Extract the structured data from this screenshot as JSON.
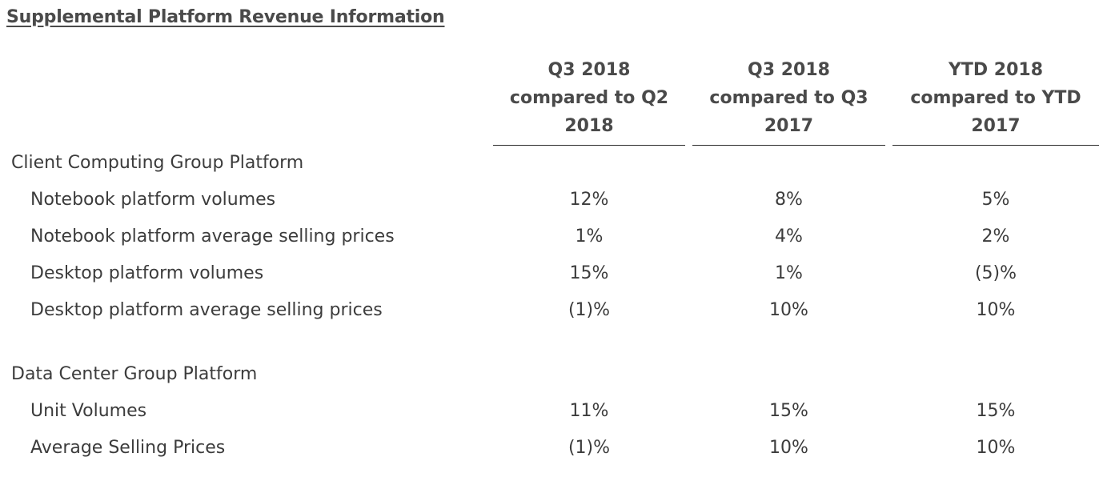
{
  "title": "Supplemental Platform Revenue Information",
  "columns": [
    {
      "lines": [
        "Q3 2018",
        "compared to Q2",
        "2018"
      ]
    },
    {
      "lines": [
        "Q3 2018",
        "compared to Q3",
        "2017"
      ]
    },
    {
      "lines": [
        "YTD 2018",
        "compared to YTD",
        "2017"
      ]
    }
  ],
  "sections": [
    {
      "label": "Client Computing Group Platform",
      "rows": [
        {
          "label": "Notebook platform volumes",
          "values": [
            "12%",
            "8%",
            "5%"
          ]
        },
        {
          "label": "Notebook platform average selling prices",
          "values": [
            "1%",
            "4%",
            "2%"
          ]
        },
        {
          "label": "Desktop platform volumes",
          "values": [
            "15%",
            "1%",
            "(5)%"
          ]
        },
        {
          "label": "Desktop platform average selling prices",
          "values": [
            "(1)%",
            "10%",
            "10%"
          ]
        }
      ]
    },
    {
      "label": "Data Center Group Platform",
      "rows": [
        {
          "label": "Unit Volumes",
          "values": [
            "11%",
            "15%",
            "15%"
          ]
        },
        {
          "label": "Average Selling Prices",
          "values": [
            "(1)%",
            "10%",
            "10%"
          ]
        }
      ]
    }
  ]
}
